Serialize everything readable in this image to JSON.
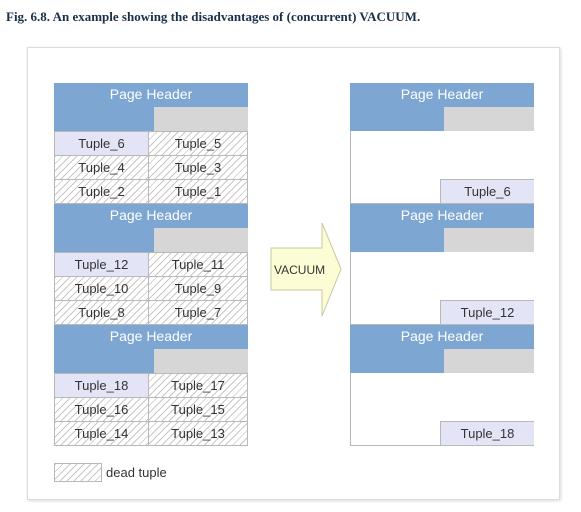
{
  "caption": "Fig. 6.8. An example showing the disadvantages of (concurrent) VACUUM.",
  "page_header_label": "Page Header",
  "arrow_label": "VACUUM",
  "legend_label": "dead tuple",
  "left_pages": [
    {
      "rows": [
        [
          "Tuple_6",
          "Tuple_5"
        ],
        [
          "Tuple_4",
          "Tuple_3"
        ],
        [
          "Tuple_2",
          "Tuple_1"
        ]
      ]
    },
    {
      "rows": [
        [
          "Tuple_12",
          "Tuple_11"
        ],
        [
          "Tuple_10",
          "Tuple_9"
        ],
        [
          "Tuple_8",
          "Tuple_7"
        ]
      ]
    },
    {
      "rows": [
        [
          "Tuple_18",
          "Tuple_17"
        ],
        [
          "Tuple_16",
          "Tuple_15"
        ],
        [
          "Tuple_14",
          "Tuple_13"
        ]
      ]
    }
  ],
  "right_pages": [
    {
      "remaining_tuple": "Tuple_6"
    },
    {
      "remaining_tuple": "Tuple_12"
    },
    {
      "remaining_tuple": "Tuple_18"
    }
  ],
  "colors": {
    "header": "#7ea6d2",
    "header_gray": "#d6d6d6",
    "live_tuple": "#e4e4f7",
    "arrow_fill": "#fdfdd5"
  }
}
